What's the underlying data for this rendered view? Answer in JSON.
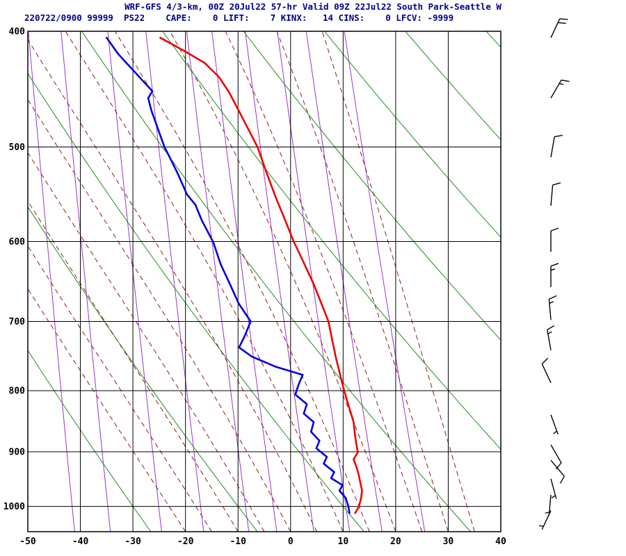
{
  "header": {
    "line1": "WRF-GFS 4/3-km, 00Z 20Jul22 57-hr Valid 09Z 22Jul22 South Park-Seattle W",
    "line2": "220722/0900 99999  PS22    CAPE:    0 LIFT:    7 KINX:   14 CINS:    0 LFCV: -9999"
  },
  "colors": {
    "title": "#00008b",
    "grid": "#000000",
    "dry_adiabat": "#1e8c1e",
    "moist_adiabat": "#8b1a1a",
    "mixing_ratio": "#9933cc",
    "temperature": "#ee0000",
    "dewpoint": "#0000dd",
    "barbs": "#000000"
  },
  "chart_data": {
    "type": "skewt-logp",
    "title": "WRF-GFS 4/3-km, 00Z 20Jul22 57-hr Valid 09Z 22Jul22 South Park-Seattle W",
    "x_axis": {
      "unit": "degC",
      "range": [
        -50,
        40
      ],
      "ticks": [
        -50,
        -40,
        -30,
        -20,
        -10,
        0,
        10,
        20,
        30,
        40
      ]
    },
    "y_axis": {
      "unit": "hPa",
      "scale": "log",
      "range": [
        400,
        1050
      ],
      "ticks": [
        400,
        500,
        600,
        700,
        800,
        900,
        1000
      ]
    },
    "isotherms_c": [
      -50,
      -40,
      -30,
      -20,
      -10,
      0,
      10,
      20,
      30,
      40
    ],
    "isobars_hpa": [
      400,
      500,
      600,
      700,
      800,
      900,
      1000
    ],
    "dry_adiabats_c": [
      -30,
      -10,
      10,
      30,
      50,
      70,
      90,
      110,
      130
    ],
    "moist_adiabats_c": [
      -20,
      -15,
      -10,
      -5,
      0,
      5,
      10,
      15,
      20,
      25,
      30,
      35
    ],
    "mixing_ratio_gkg": [
      0.1,
      0.2,
      0.5,
      1,
      2,
      3,
      5,
      8,
      12,
      20
    ],
    "temperature_profile": [
      [
        1013,
        12.3
      ],
      [
        1000,
        13.0
      ],
      [
        985,
        13.4
      ],
      [
        970,
        13.6
      ],
      [
        952,
        13.2
      ],
      [
        938,
        12.9
      ],
      [
        926,
        12.5
      ],
      [
        913,
        12.0
      ],
      [
        901,
        12.8
      ],
      [
        886,
        12.5
      ],
      [
        868,
        12.2
      ],
      [
        850,
        12.0
      ],
      [
        825,
        11.1
      ],
      [
        800,
        10.2
      ],
      [
        775,
        9.4
      ],
      [
        750,
        8.6
      ],
      [
        725,
        7.9
      ],
      [
        700,
        7.2
      ],
      [
        675,
        5.8
      ],
      [
        650,
        4.3
      ],
      [
        625,
        2.5
      ],
      [
        600,
        0.6
      ],
      [
        575,
        -1.1
      ],
      [
        550,
        -2.9
      ],
      [
        525,
        -4.6
      ],
      [
        500,
        -6.3
      ],
      [
        475,
        -8.9
      ],
      [
        450,
        -11.7
      ],
      [
        437,
        -13.6
      ],
      [
        425,
        -16.4
      ],
      [
        415,
        -20.4
      ],
      [
        405,
        -24.8
      ]
    ],
    "dewpoint_profile": [
      [
        1013,
        11.2
      ],
      [
        1000,
        11.0
      ],
      [
        984,
        10.5
      ],
      [
        970,
        9.3
      ],
      [
        960,
        9.9
      ],
      [
        947,
        7.7
      ],
      [
        936,
        8.3
      ],
      [
        921,
        6.3
      ],
      [
        909,
        6.9
      ],
      [
        894,
        4.9
      ],
      [
        881,
        5.5
      ],
      [
        866,
        3.9
      ],
      [
        850,
        4.4
      ],
      [
        836,
        2.5
      ],
      [
        821,
        3.1
      ],
      [
        806,
        0.9
      ],
      [
        791,
        1.5
      ],
      [
        776,
        2.3
      ],
      [
        764,
        -2.8
      ],
      [
        749,
        -7.4
      ],
      [
        736,
        -9.8
      ],
      [
        721,
        -8.8
      ],
      [
        700,
        -7.6
      ],
      [
        676,
        -9.9
      ],
      [
        652,
        -11.5
      ],
      [
        627,
        -13.3
      ],
      [
        601,
        -14.7
      ],
      [
        576,
        -16.9
      ],
      [
        559,
        -18.1
      ],
      [
        548,
        -19.7
      ],
      [
        526,
        -21.5
      ],
      [
        508,
        -23.2
      ],
      [
        500,
        -24.0
      ],
      [
        482,
        -25.3
      ],
      [
        466,
        -26.5
      ],
      [
        455,
        -27.1
      ],
      [
        449,
        -26.3
      ],
      [
        432,
        -29.8
      ],
      [
        418,
        -32.8
      ],
      [
        405,
        -35.0
      ]
    ],
    "wind_barbs": [
      {
        "p": 405,
        "dir": 25,
        "spd": 20
      },
      {
        "p": 455,
        "dir": 30,
        "spd": 15
      },
      {
        "p": 510,
        "dir": 10,
        "spd": 10
      },
      {
        "p": 560,
        "dir": 5,
        "spd": 10
      },
      {
        "p": 612,
        "dir": 0,
        "spd": 10
      },
      {
        "p": 655,
        "dir": 0,
        "spd": 15
      },
      {
        "p": 698,
        "dir": 355,
        "spd": 15
      },
      {
        "p": 740,
        "dir": 350,
        "spd": 15
      },
      {
        "p": 788,
        "dir": 335,
        "spd": 10
      },
      {
        "p": 838,
        "dir": 160,
        "spd": 5
      },
      {
        "p": 888,
        "dir": 150,
        "spd": 10
      },
      {
        "p": 915,
        "dir": 140,
        "spd": 10
      },
      {
        "p": 948,
        "dir": 165,
        "spd": 5
      },
      {
        "p": 978,
        "dir": 185,
        "spd": 5
      },
      {
        "p": 1008,
        "dir": 205,
        "spd": 5
      }
    ]
  }
}
